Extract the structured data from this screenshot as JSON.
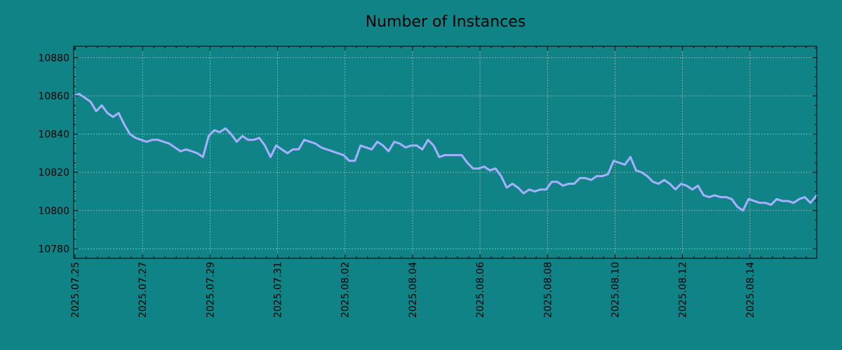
{
  "colors": {
    "background": "#108387",
    "series": "#a6b0ff",
    "grid": "#b9c6c8"
  },
  "chart_data": {
    "type": "line",
    "title": "Number of Instances",
    "xlabel": "",
    "ylabel": "",
    "xlim": [
      "2025-07-24T23:00",
      "2025-08-15T23:30"
    ],
    "ylim": [
      10775,
      10886
    ],
    "grid": true,
    "legend": "none",
    "x_tick_labels": [
      "2025.07.25",
      "2025.07.27",
      "2025.07.29",
      "2025.07.31",
      "2025.08.02",
      "2025.08.04",
      "2025.08.06",
      "2025.08.08",
      "2025.08.10",
      "2025.08.12",
      "2025.08.14"
    ],
    "x_tick_dates": [
      "2025-07-25",
      "2025-07-27",
      "2025-07-29",
      "2025-07-31",
      "2025-08-02",
      "2025-08-04",
      "2025-08-06",
      "2025-08-08",
      "2025-08-10",
      "2025-08-12",
      "2025-08-14"
    ],
    "y_ticks": [
      10780,
      10800,
      10820,
      10840,
      10860,
      10880
    ],
    "series": [
      {
        "x": [
          "2025-07-24T23:00",
          "2025-07-25T03:00",
          "2025-07-25T07:00",
          "2025-07-25T11:00",
          "2025-07-25T15:00",
          "2025-07-25T19:00",
          "2025-07-25T23:00",
          "2025-07-26T03:00",
          "2025-07-26T07:00",
          "2025-07-26T11:00",
          "2025-07-26T15:00",
          "2025-07-26T19:00",
          "2025-07-26T23:00",
          "2025-07-27T03:00",
          "2025-07-27T07:00",
          "2025-07-27T11:00",
          "2025-07-27T15:00",
          "2025-07-27T19:00",
          "2025-07-27T23:00",
          "2025-07-28T03:00",
          "2025-07-28T07:00",
          "2025-07-28T11:00",
          "2025-07-28T15:00",
          "2025-07-28T19:00",
          "2025-07-28T23:00",
          "2025-07-29T03:00",
          "2025-07-29T07:00",
          "2025-07-29T11:00",
          "2025-07-29T15:00",
          "2025-07-29T19:00",
          "2025-07-29T23:00",
          "2025-07-30T03:00",
          "2025-07-30T07:00",
          "2025-07-30T11:00",
          "2025-07-30T15:00",
          "2025-07-30T19:00",
          "2025-07-30T23:00",
          "2025-07-31T03:00",
          "2025-07-31T07:00",
          "2025-07-31T11:00",
          "2025-07-31T15:00",
          "2025-07-31T19:00",
          "2025-07-31T23:00",
          "2025-08-01T03:00",
          "2025-08-01T07:00",
          "2025-08-01T11:00",
          "2025-08-01T15:00",
          "2025-08-01T19:00",
          "2025-08-01T23:00",
          "2025-08-02T03:00",
          "2025-08-02T07:00",
          "2025-08-02T11:00",
          "2025-08-02T15:00",
          "2025-08-02T19:00",
          "2025-08-02T23:00",
          "2025-08-03T03:00",
          "2025-08-03T07:00",
          "2025-08-03T11:00",
          "2025-08-03T15:00",
          "2025-08-03T19:00",
          "2025-08-03T23:00",
          "2025-08-04T03:00",
          "2025-08-04T07:00",
          "2025-08-04T11:00",
          "2025-08-04T15:00",
          "2025-08-04T19:00",
          "2025-08-04T23:00",
          "2025-08-05T03:00",
          "2025-08-05T07:00",
          "2025-08-05T11:00",
          "2025-08-05T15:00",
          "2025-08-05T19:00",
          "2025-08-05T23:00",
          "2025-08-06T03:00",
          "2025-08-06T07:00",
          "2025-08-06T11:00",
          "2025-08-06T15:00",
          "2025-08-06T19:00",
          "2025-08-06T23:00",
          "2025-08-07T03:00",
          "2025-08-07T07:00",
          "2025-08-07T11:00",
          "2025-08-07T15:00",
          "2025-08-07T19:00",
          "2025-08-07T23:00",
          "2025-08-08T03:00",
          "2025-08-08T07:00",
          "2025-08-08T11:00",
          "2025-08-08T15:00",
          "2025-08-08T19:00",
          "2025-08-08T23:00",
          "2025-08-09T03:00",
          "2025-08-09T07:00",
          "2025-08-09T11:00",
          "2025-08-09T15:00",
          "2025-08-09T19:00",
          "2025-08-09T23:00",
          "2025-08-10T03:00",
          "2025-08-10T07:00",
          "2025-08-10T11:00",
          "2025-08-10T15:00",
          "2025-08-10T19:00",
          "2025-08-10T23:00",
          "2025-08-11T03:00",
          "2025-08-11T07:00",
          "2025-08-11T11:00",
          "2025-08-11T15:00",
          "2025-08-11T19:00",
          "2025-08-11T23:00",
          "2025-08-12T03:00",
          "2025-08-12T07:00",
          "2025-08-12T11:00",
          "2025-08-12T15:00",
          "2025-08-12T19:00",
          "2025-08-12T23:00",
          "2025-08-13T03:00",
          "2025-08-13T07:00",
          "2025-08-13T11:00",
          "2025-08-13T15:00",
          "2025-08-13T19:00",
          "2025-08-13T23:00",
          "2025-08-14T03:00",
          "2025-08-14T07:00",
          "2025-08-14T11:00",
          "2025-08-14T15:00",
          "2025-08-14T19:00",
          "2025-08-14T23:00",
          "2025-08-15T03:00",
          "2025-08-15T07:00",
          "2025-08-15T11:00",
          "2025-08-15T15:00",
          "2025-08-15T19:00",
          "2025-08-15T23:30"
        ],
        "y": [
          10860,
          10861,
          10859,
          10857,
          10852,
          10855,
          10851,
          10849,
          10851,
          10845,
          10840,
          10838,
          10837,
          10836,
          10837,
          10837,
          10836,
          10835,
          10833,
          10831,
          10832,
          10831,
          10830,
          10828,
          10839,
          10842,
          10841,
          10843,
          10840,
          10836,
          10839,
          10837,
          10837,
          10838,
          10834,
          10828,
          10834,
          10832,
          10830,
          10832,
          10832,
          10837,
          10836,
          10835,
          10833,
          10832,
          10831,
          10830,
          10829,
          10826,
          10826,
          10834,
          10833,
          10832,
          10836,
          10834,
          10831,
          10836,
          10835,
          10833,
          10834,
          10834,
          10832,
          10837,
          10834,
          10828,
          10829,
          10829,
          10829,
          10829,
          10825,
          10822,
          10822,
          10823,
          10821,
          10822,
          10818,
          10812,
          10814,
          10812,
          10809,
          10811,
          10810,
          10811,
          10811,
          10815,
          10815,
          10813,
          10814,
          10814,
          10817,
          10817,
          10816,
          10818,
          10818,
          10819,
          10826,
          10825,
          10824,
          10828,
          10821,
          10820,
          10818,
          10815,
          10814,
          10816,
          10814,
          10811,
          10814,
          10813,
          10811,
          10813,
          10808,
          10807,
          10808,
          10807,
          10807,
          10806,
          10802,
          10800,
          10806,
          10805,
          10804,
          10804,
          10803,
          10806,
          10805,
          10805,
          10804,
          10806,
          10807,
          10804,
          10808
        ]
      }
    ]
  }
}
